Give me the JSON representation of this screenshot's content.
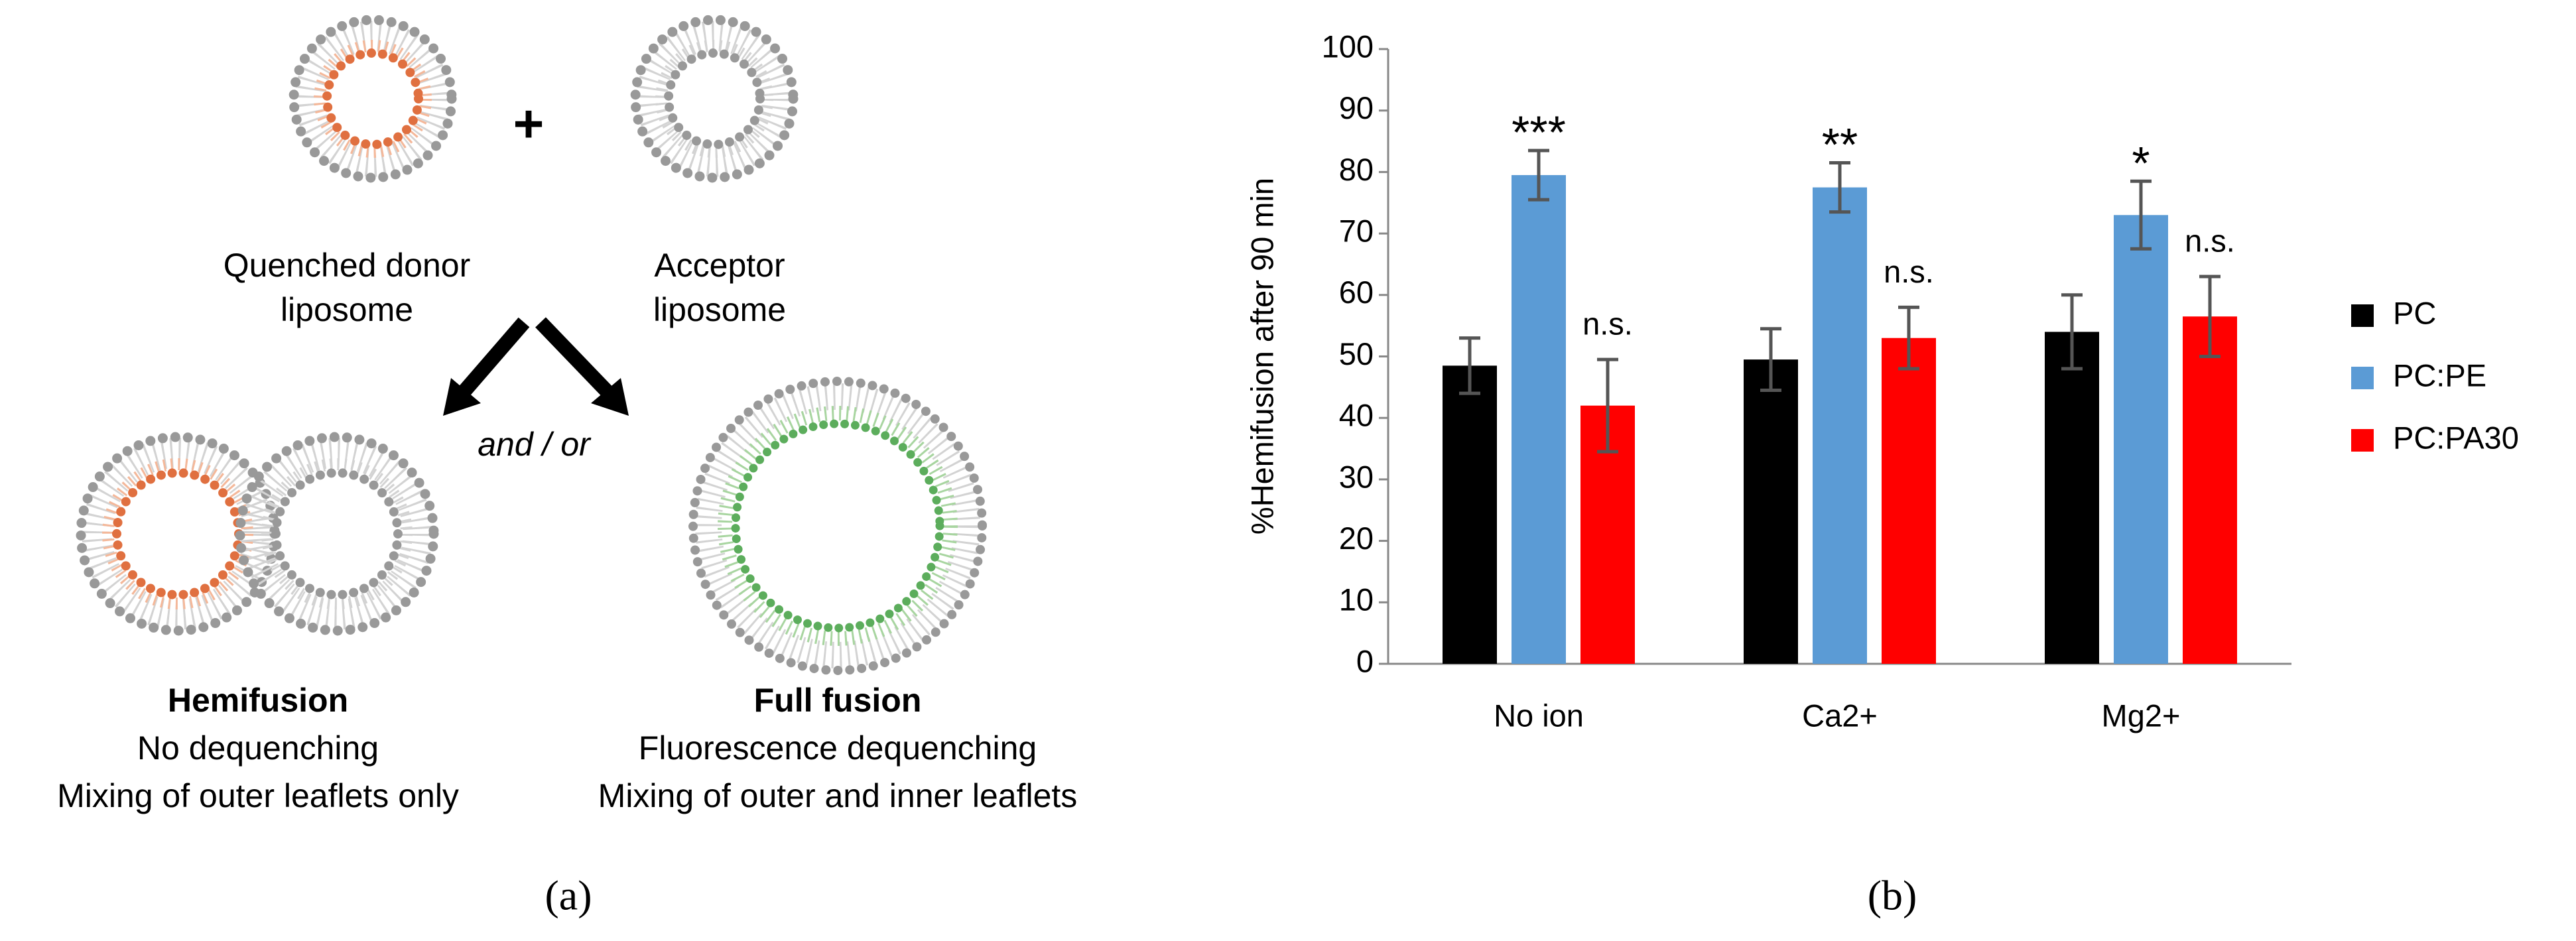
{
  "diagram": {
    "donor_label": [
      "Quenched donor",
      "liposome"
    ],
    "acceptor_label": [
      "Acceptor",
      "liposome"
    ],
    "connector": "and / or",
    "hemifusion": {
      "title": "Hemifusion",
      "lines": [
        "No dequenching",
        "Mixing of outer leaflets only"
      ]
    },
    "full_fusion": {
      "title": "Full fusion",
      "lines": [
        "Fluorescence dequenching",
        "Mixing of outer and inner leaflets"
      ]
    }
  },
  "panel_labels": [
    "(a)",
    "(b)"
  ],
  "chart_data": {
    "type": "bar",
    "y_label": "%Hemifusion after 90 min",
    "categories": [
      "No ion",
      "Ca2+",
      "Mg2+"
    ],
    "series": [
      {
        "name": "PC",
        "color": "#000000",
        "values": [
          48.5,
          49.5,
          54
        ],
        "errors": [
          4.5,
          5,
          6
        ]
      },
      {
        "name": "PC:PE",
        "color": "#5b9bd5",
        "values": [
          79.5,
          77.5,
          73
        ],
        "errors": [
          4,
          4,
          5.5
        ],
        "annotations": [
          "***",
          "**",
          "*"
        ]
      },
      {
        "name": "PC:PA30",
        "color": "#ff0000",
        "values": [
          42,
          53,
          56.5
        ],
        "errors": [
          7.5,
          5,
          6.5
        ],
        "annotations": [
          "n.s.",
          "n.s.",
          "n.s."
        ]
      }
    ],
    "ylim": [
      0,
      100
    ],
    "yticks": [
      0,
      10,
      20,
      30,
      40,
      50,
      60,
      70,
      80,
      90,
      100
    ],
    "grid": false,
    "legend": "right"
  }
}
